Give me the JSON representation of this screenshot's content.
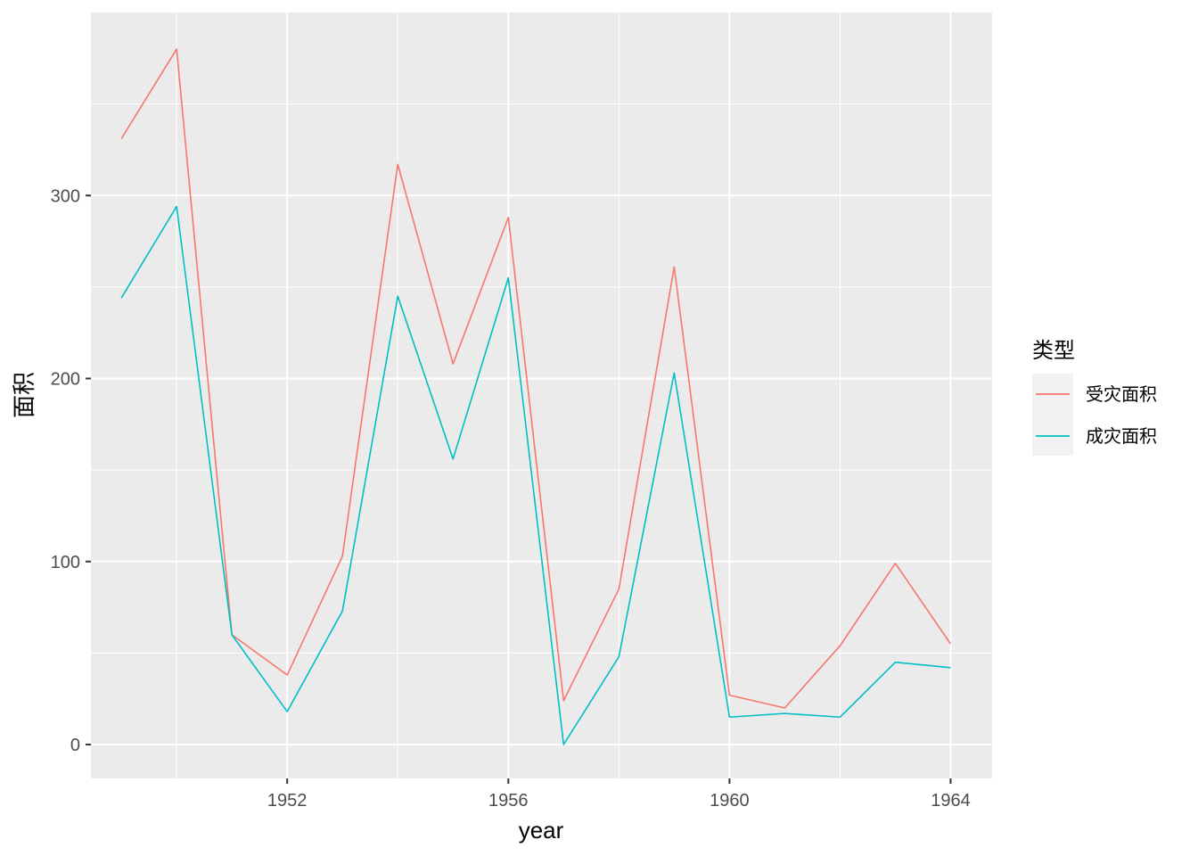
{
  "chart_data": {
    "type": "line",
    "xlabel": "year",
    "ylabel": "面积",
    "x": [
      1949,
      1950,
      1951,
      1952,
      1953,
      1954,
      1955,
      1956,
      1957,
      1958,
      1959,
      1960,
      1961,
      1962,
      1963,
      1964
    ],
    "x_ticks": [
      1952,
      1956,
      1960,
      1964
    ],
    "y_ticks": [
      0,
      100,
      200,
      300
    ],
    "xlim": [
      1948.45,
      1964.75
    ],
    "ylim": [
      -18.5,
      400
    ],
    "grid": true,
    "legend_position": "right",
    "legend_title": "类型",
    "series": [
      {
        "name": "受灾面积",
        "color": "#F8766D",
        "values": [
          331,
          380,
          60,
          38,
          103,
          317,
          208,
          288,
          24,
          85,
          261,
          27,
          20,
          54,
          99,
          55
        ]
      },
      {
        "name": "成灾面积",
        "color": "#00BFC4",
        "values": [
          244,
          294,
          60,
          18,
          73,
          245,
          156,
          255,
          0,
          48,
          203,
          15,
          17,
          15,
          45,
          42
        ]
      }
    ]
  }
}
